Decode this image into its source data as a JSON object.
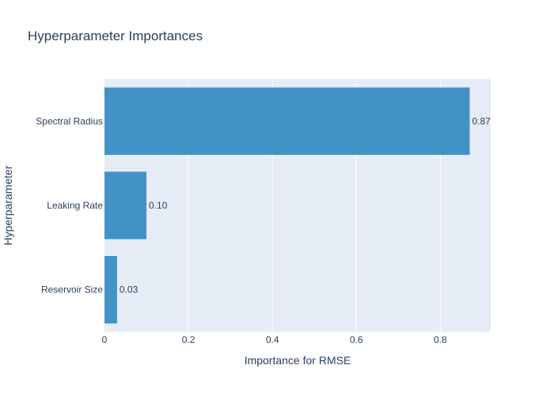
{
  "chart_data": {
    "type": "bar",
    "orientation": "horizontal",
    "title": "Hyperparameter Importances",
    "xlabel": "Importance for RMSE",
    "ylabel": "Hyperparameter",
    "categories": [
      "Spectral Radius",
      "Leaking Rate",
      "Reservoir Size"
    ],
    "values": [
      0.87,
      0.1,
      0.03
    ],
    "value_labels": [
      "0.87",
      "0.10",
      "0.03"
    ],
    "xlim": [
      0,
      0.92
    ],
    "x_ticks": [
      0,
      0.2,
      0.4,
      0.6,
      0.8
    ],
    "x_tick_labels": [
      "0",
      "0.2",
      "0.4",
      "0.6",
      "0.8"
    ],
    "grid": true,
    "legend": "none",
    "colors": {
      "bar": "#4292c6",
      "plot_background": "#e5ecf6",
      "grid": "#ffffff",
      "text": "#2a3f5f"
    }
  }
}
